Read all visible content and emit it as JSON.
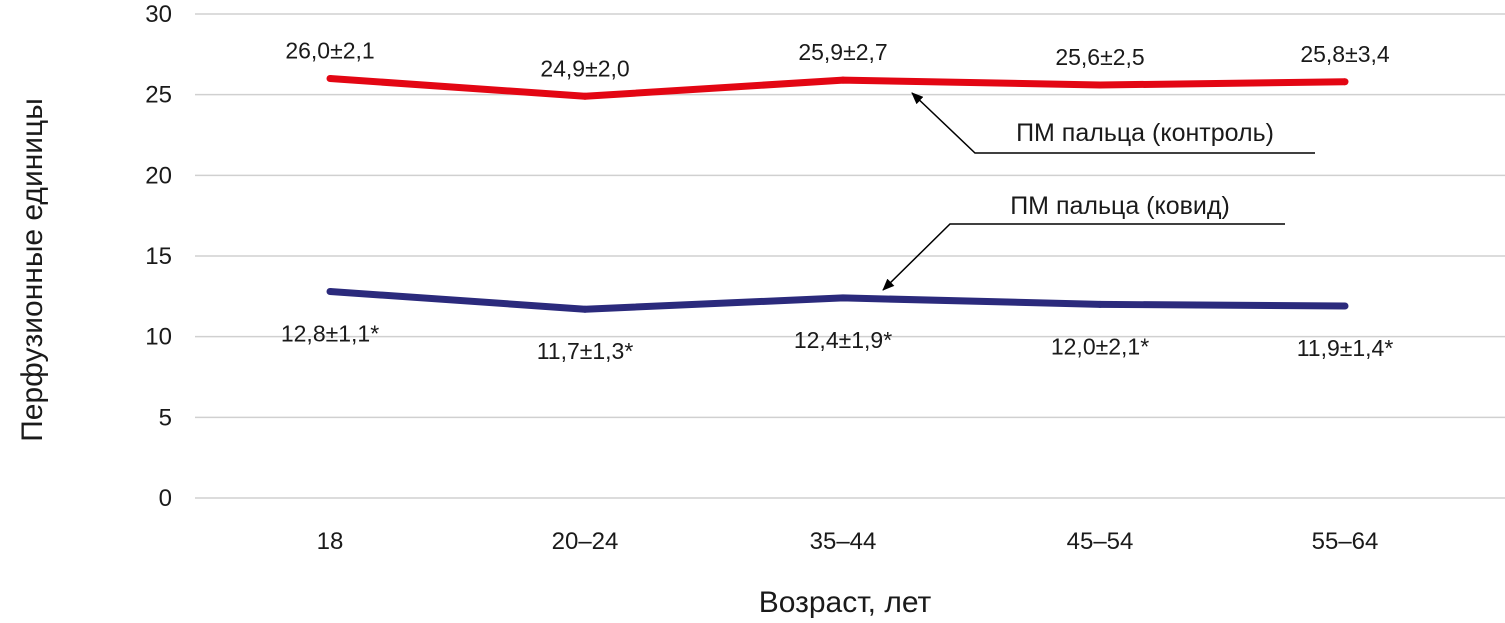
{
  "chart_data": {
    "type": "line",
    "categories": [
      "18",
      "20–24",
      "35–44",
      "45–54",
      "55–64"
    ],
    "series": [
      {
        "name": "ПМ пальца (контроль)",
        "color": "#e30613",
        "values": [
          26.0,
          24.9,
          25.9,
          25.6,
          25.8
        ],
        "labels": [
          "26,0±2,1",
          "24,9±2,0",
          "25,9±2,7",
          "25,6±2,5",
          "25,8±3,4"
        ]
      },
      {
        "name": "ПМ пальца (ковид)",
        "color": "#2b2a7c",
        "values": [
          12.8,
          11.7,
          12.4,
          12.0,
          11.9
        ],
        "labels": [
          "12,8±1,1*",
          "11,7±1,3*",
          "12,4±1,9*",
          "12,0±2,1*",
          "11,9±1,4*"
        ]
      }
    ],
    "xlabel": "Возраст, лет",
    "ylabel": "Перфузионные единицы",
    "ylim": [
      0,
      30
    ],
    "yticks": [
      "0",
      "5",
      "10",
      "15",
      "20",
      "25",
      "30"
    ],
    "grid": true,
    "gridColor": "#d0d0d0",
    "legend": "callout-arrows"
  }
}
